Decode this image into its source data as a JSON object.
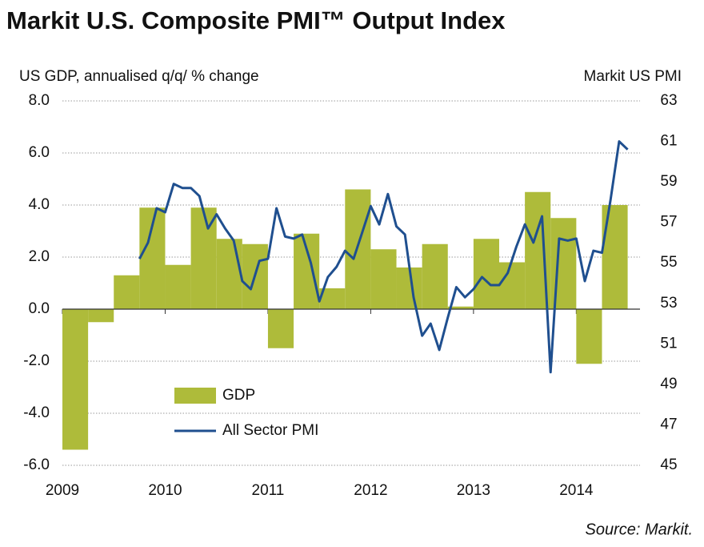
{
  "chart_data": {
    "type": "combo",
    "title": "Markit U.S. Composite PMI™ Output Index",
    "ylabel": "US GDP, annualised q/q/ % change",
    "y2label": "Markit US PMI",
    "note": "Source: Markit.",
    "xlim": [
      2009,
      2014.62
    ],
    "xticks": [
      2009,
      2010,
      2011,
      2012,
      2013,
      2014
    ],
    "ylim": [
      -6,
      8
    ],
    "yticks": [
      {
        "value": -6,
        "label": "-6.0"
      },
      {
        "value": -4,
        "label": "-4.0"
      },
      {
        "value": -2,
        "label": "-2.0"
      },
      {
        "value": 0,
        "label": "0.0"
      },
      {
        "value": 2,
        "label": "2.0"
      },
      {
        "value": 4,
        "label": "4.0"
      },
      {
        "value": 6,
        "label": "6.0"
      },
      {
        "value": 8,
        "label": "8.0"
      }
    ],
    "y2lim": [
      45,
      63
    ],
    "y2ticks": [
      45,
      47,
      49,
      51,
      53,
      55,
      57,
      59,
      61,
      63
    ],
    "grid": true,
    "series": [
      {
        "name": "GDP",
        "type": "bar",
        "color": "#aebb3a",
        "x": [
          2009.125,
          2009.375,
          2009.625,
          2009.875,
          2010.125,
          2010.375,
          2010.625,
          2010.875,
          2011.125,
          2011.375,
          2011.625,
          2011.875,
          2012.125,
          2012.375,
          2012.625,
          2012.875,
          2013.125,
          2013.375,
          2013.625,
          2013.875,
          2014.125,
          2014.375
        ],
        "values": [
          -5.4,
          -0.5,
          1.3,
          3.9,
          1.7,
          3.9,
          2.7,
          2.5,
          -1.5,
          2.9,
          0.8,
          4.6,
          2.3,
          1.6,
          2.5,
          0.1,
          2.7,
          1.8,
          4.5,
          3.5,
          -2.1,
          4.0
        ]
      },
      {
        "name": "All Sector PMI",
        "type": "line",
        "axis": "y2",
        "color": "#1f4f8f",
        "x": [
          2009.75,
          2009.833,
          2009.917,
          2010,
          2010.083,
          2010.167,
          2010.25,
          2010.333,
          2010.417,
          2010.5,
          2010.583,
          2010.667,
          2010.75,
          2010.833,
          2010.917,
          2011,
          2011.083,
          2011.167,
          2011.25,
          2011.333,
          2011.417,
          2011.5,
          2011.583,
          2011.667,
          2011.75,
          2011.833,
          2011.917,
          2012,
          2012.083,
          2012.167,
          2012.25,
          2012.333,
          2012.417,
          2012.5,
          2012.583,
          2012.667,
          2012.75,
          2012.833,
          2012.917,
          2013,
          2013.083,
          2013.167,
          2013.25,
          2013.333,
          2013.417,
          2013.5,
          2013.583,
          2013.667,
          2013.75,
          2013.833,
          2013.917,
          2014,
          2014.083,
          2014.167,
          2014.25,
          2014.333,
          2014.417,
          2014.5
        ],
        "values": [
          55.2,
          56.0,
          57.7,
          57.5,
          58.9,
          58.7,
          58.7,
          58.3,
          56.7,
          57.4,
          56.7,
          56.1,
          54.1,
          53.7,
          55.1,
          55.2,
          57.7,
          56.3,
          56.2,
          56.4,
          55.0,
          53.1,
          54.3,
          54.8,
          55.6,
          55.2,
          56.5,
          57.8,
          56.9,
          58.4,
          56.8,
          56.4,
          53.3,
          51.4,
          52.0,
          50.7,
          52.3,
          53.8,
          53.3,
          53.7,
          54.3,
          53.9,
          53.9,
          54.5,
          55.8,
          56.9,
          56.0,
          57.3,
          49.6,
          56.2,
          56.1,
          56.2,
          54.1,
          55.6,
          55.5,
          58.1,
          61.0,
          60.6
        ]
      }
    ]
  }
}
